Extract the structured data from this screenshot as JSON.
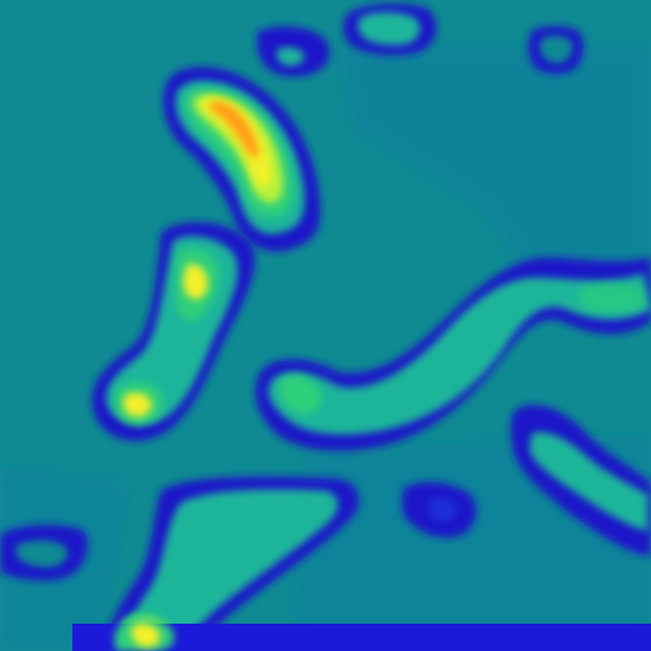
{
  "image": {
    "kind": "heatmap",
    "palette": {
      "background": "#0f8a92",
      "shade_low": "#0a77a3",
      "deep_blue": "#1c17c8",
      "mid_blue": "#1a2fd8",
      "teal_green": "#1fb59a",
      "green": "#2fcf7a",
      "yellow_green": "#b6f03a",
      "yellow": "#f2f02a",
      "orange": "#ff9c18",
      "edge_strip": "#1a1ad8"
    }
  }
}
